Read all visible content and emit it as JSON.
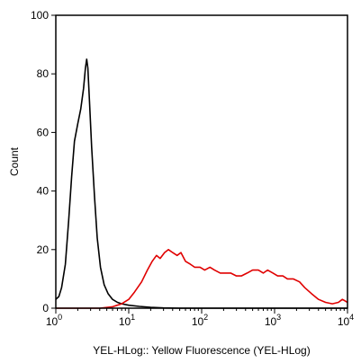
{
  "chart_data": {
    "type": "line",
    "title": "",
    "xlabel": "YEL-HLog:: Yellow Fluorescence (YEL-HLog)",
    "ylabel": "Count",
    "xscale": "log",
    "xlim": [
      1,
      10000
    ],
    "ylim": [
      0,
      100
    ],
    "x_ticks": [
      {
        "base": "10",
        "exp": "0",
        "value": 1
      },
      {
        "base": "10",
        "exp": "1",
        "value": 10
      },
      {
        "base": "10",
        "exp": "2",
        "value": 100
      },
      {
        "base": "10",
        "exp": "3",
        "value": 1000
      },
      {
        "base": "10",
        "exp": "4",
        "value": 10000
      }
    ],
    "y_ticks": [
      "0",
      "20",
      "40",
      "60",
      "80",
      "100"
    ],
    "grid": false,
    "legend": "none",
    "series": [
      {
        "color": "#000000",
        "points": [
          [
            1.0,
            3
          ],
          [
            1.1,
            4
          ],
          [
            1.2,
            7
          ],
          [
            1.35,
            15
          ],
          [
            1.5,
            30
          ],
          [
            1.65,
            45
          ],
          [
            1.8,
            57
          ],
          [
            2.0,
            63
          ],
          [
            2.2,
            68
          ],
          [
            2.4,
            75
          ],
          [
            2.55,
            82
          ],
          [
            2.65,
            85
          ],
          [
            2.75,
            82
          ],
          [
            2.9,
            70
          ],
          [
            3.1,
            55
          ],
          [
            3.4,
            38
          ],
          [
            3.7,
            24
          ],
          [
            4.1,
            14
          ],
          [
            4.6,
            8
          ],
          [
            5.2,
            5
          ],
          [
            6.0,
            3
          ],
          [
            7.0,
            2
          ],
          [
            8.0,
            1.5
          ],
          [
            10,
            1
          ],
          [
            14,
            0.6
          ],
          [
            20,
            0.3
          ],
          [
            30,
            0.1
          ],
          [
            50,
            0
          ],
          [
            10000,
            0
          ]
        ]
      },
      {
        "color": "#e00000",
        "points": [
          [
            1.0,
            0
          ],
          [
            4.0,
            0
          ],
          [
            6.0,
            0.5
          ],
          [
            8.0,
            1.5
          ],
          [
            10,
            3
          ],
          [
            12,
            5.5
          ],
          [
            15,
            9
          ],
          [
            18,
            13
          ],
          [
            21,
            16
          ],
          [
            24,
            18
          ],
          [
            27,
            17
          ],
          [
            31,
            19
          ],
          [
            35,
            20
          ],
          [
            40,
            19
          ],
          [
            46,
            18
          ],
          [
            52,
            19
          ],
          [
            60,
            16
          ],
          [
            70,
            15
          ],
          [
            80,
            14
          ],
          [
            95,
            14
          ],
          [
            110,
            13
          ],
          [
            130,
            14
          ],
          [
            150,
            13
          ],
          [
            180,
            12
          ],
          [
            210,
            12
          ],
          [
            250,
            12
          ],
          [
            300,
            11
          ],
          [
            350,
            11
          ],
          [
            420,
            12
          ],
          [
            500,
            13
          ],
          [
            600,
            13
          ],
          [
            700,
            12
          ],
          [
            800,
            13
          ],
          [
            950,
            12
          ],
          [
            1100,
            11
          ],
          [
            1300,
            11
          ],
          [
            1500,
            10
          ],
          [
            1800,
            10
          ],
          [
            2200,
            9
          ],
          [
            2600,
            7
          ],
          [
            3200,
            5
          ],
          [
            4000,
            3
          ],
          [
            5000,
            2
          ],
          [
            6200,
            1.5
          ],
          [
            7500,
            2
          ],
          [
            8500,
            3
          ],
          [
            10000,
            2
          ]
        ]
      }
    ]
  }
}
